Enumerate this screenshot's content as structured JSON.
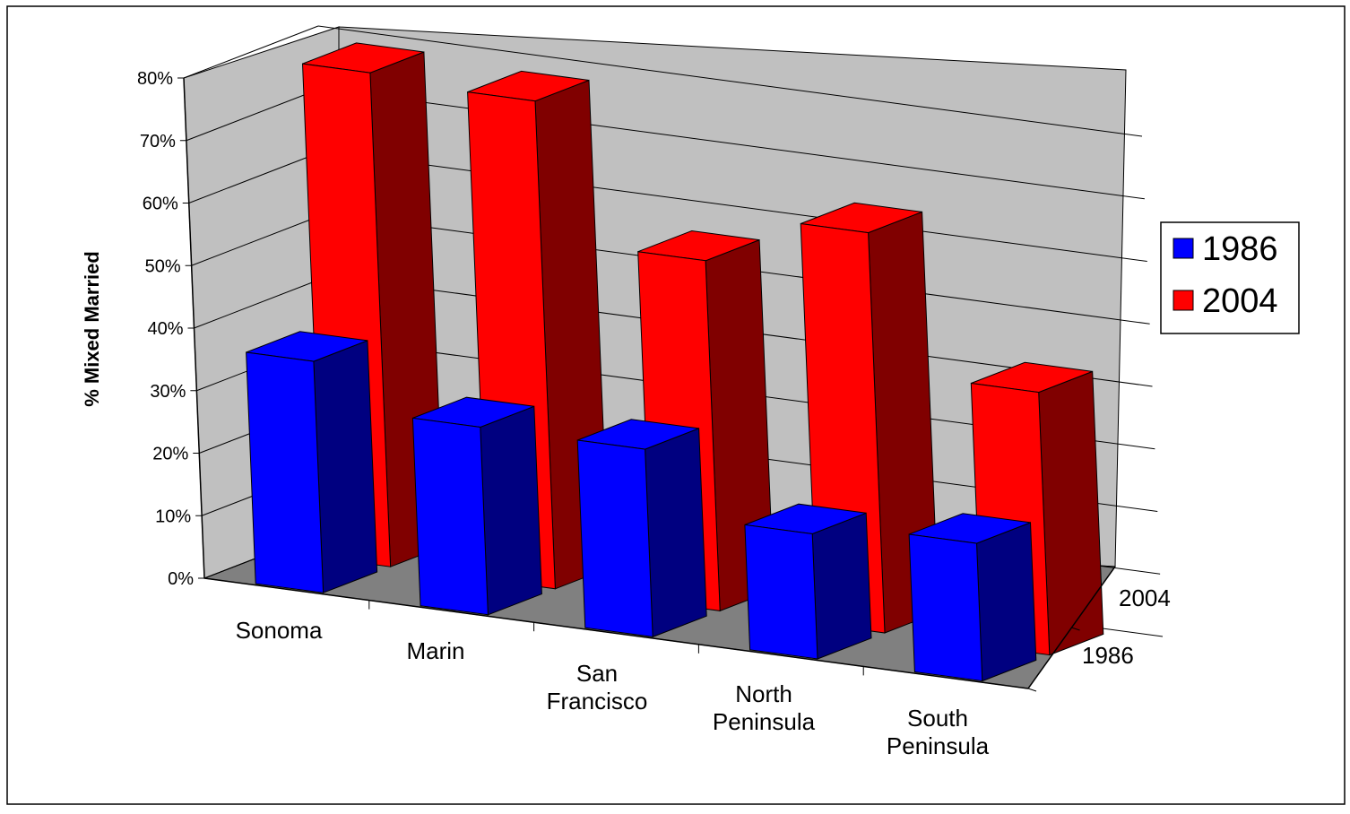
{
  "chart_data": {
    "type": "bar",
    "subtype": "3d-clustered-depth",
    "title": "",
    "ylabel": "% Mixed Married",
    "xlabel": "",
    "ylim": [
      0,
      0.8
    ],
    "ytick_values": [
      0,
      0.1,
      0.2,
      0.3,
      0.4,
      0.5,
      0.6,
      0.7,
      0.8
    ],
    "ytick_labels": [
      "0%",
      "10%",
      "20%",
      "30%",
      "40%",
      "50%",
      "60%",
      "70%",
      "80%"
    ],
    "categories": [
      "Sonoma",
      "Marin",
      "San Francisco",
      "North Peninsula",
      "South Peninsula"
    ],
    "category_label_lines": [
      [
        "Sonoma"
      ],
      [
        "Marin"
      ],
      [
        "San",
        "Francisco"
      ],
      [
        "North",
        "Peninsula"
      ],
      [
        "South",
        "Peninsula"
      ]
    ],
    "depth_labels": [
      "2004",
      "1986"
    ],
    "series": [
      {
        "name": "1986",
        "values": [
          0.37,
          0.3,
          0.3,
          0.2,
          0.22
        ],
        "color": "#0000ff",
        "side_color": "#000080"
      },
      {
        "name": "2004",
        "values": [
          0.79,
          0.78,
          0.56,
          0.64,
          0.42
        ],
        "color": "#ff0000",
        "side_color": "#800000"
      }
    ],
    "legend": {
      "position": "right",
      "entries": [
        "1986",
        "2004"
      ]
    },
    "grid": true,
    "colors": {
      "wall": "#c0c0c0",
      "floor": "#808080"
    }
  }
}
